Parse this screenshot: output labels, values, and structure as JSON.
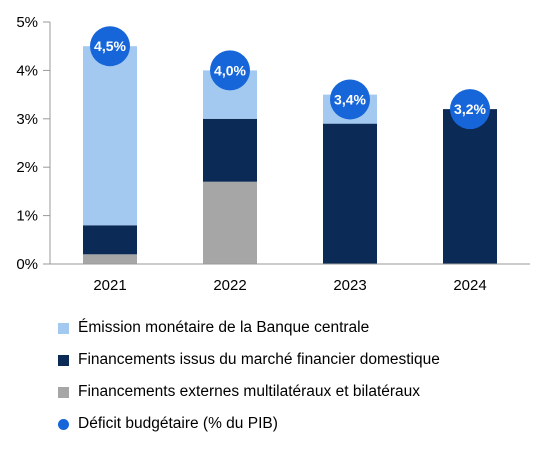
{
  "chart_data": {
    "type": "bar",
    "stacked": true,
    "categories": [
      "2021",
      "2022",
      "2023",
      "2024"
    ],
    "y_tick_labels": [
      "0%",
      "1%",
      "2%",
      "3%",
      "4%",
      "5%"
    ],
    "ylim": [
      0,
      5
    ],
    "series": [
      {
        "name": "Financements externes multilatéraux et bilatéraux",
        "color": "#a6a6a6",
        "values": [
          0.2,
          1.7,
          0.0,
          0.0
        ]
      },
      {
        "name": "Financements issus du marché financier domestique",
        "color": "#0b2a55",
        "values": [
          0.6,
          1.3,
          2.9,
          3.2
        ]
      },
      {
        "name": "Émission monétaire de la Banque centrale",
        "color": "#a3c9f1",
        "values": [
          3.7,
          1.0,
          0.6,
          0.0
        ]
      }
    ],
    "marker_series": {
      "name": "Déficit budgétaire (% du PIB)",
      "color": "#1666d9",
      "values": [
        4.5,
        4.0,
        3.4,
        3.2
      ],
      "labels": [
        "4,5%",
        "4,0%",
        "3,4%",
        "3,2%"
      ]
    },
    "legend": [
      {
        "label": "Émission monétaire de la Banque centrale",
        "color": "#a3c9f1",
        "shape": "square"
      },
      {
        "label": "Financements issus du marché financier domestique",
        "color": "#0b2a55",
        "shape": "square"
      },
      {
        "label": "Financements externes multilatéraux et bilatéraux",
        "color": "#a6a6a6",
        "shape": "square"
      },
      {
        "label": "Déficit budgétaire (% du PIB)",
        "color": "#1666d9",
        "shape": "circle"
      }
    ],
    "legend_position": "bottom",
    "grid": false
  }
}
